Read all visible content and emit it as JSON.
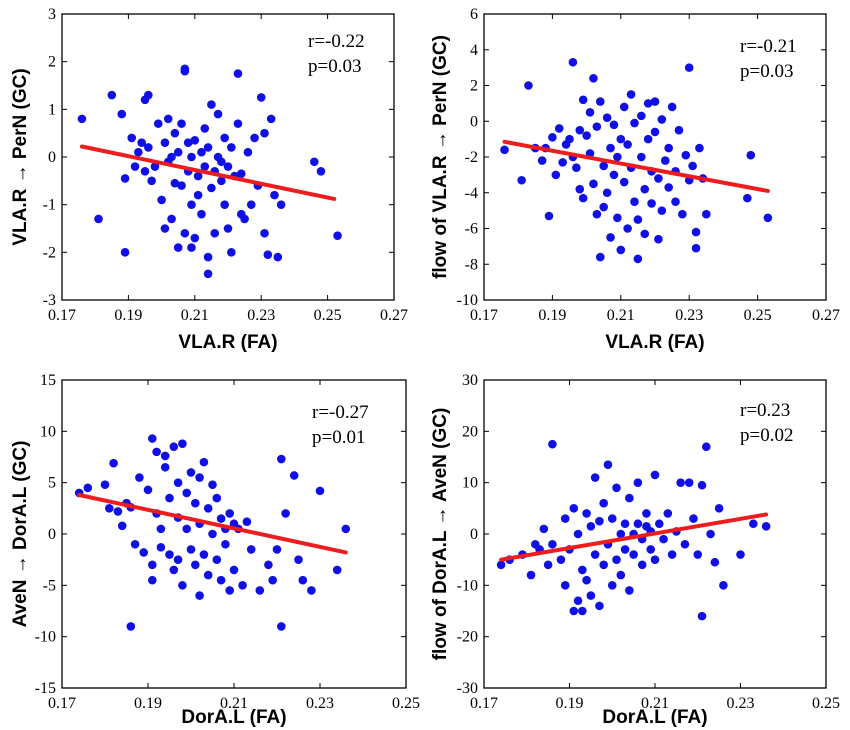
{
  "chart_data": [
    {
      "type": "scatter",
      "xlabel": "VLA.R (FA)",
      "ylabel": "VLA.R → PerN (GC)",
      "xlim": [
        0.17,
        0.27
      ],
      "ylim": [
        -3,
        3
      ],
      "xticks": [
        "0.17",
        "0.19",
        "0.21",
        "0.23",
        "0.25",
        "0.27"
      ],
      "yticks": [
        "-3",
        "-2",
        "-1",
        "0",
        "1",
        "2",
        "3"
      ],
      "stats": {
        "r": "r=-0.22",
        "p": "p=0.03"
      },
      "fit": [
        [
          0.176,
          0.22
        ],
        [
          0.252,
          -0.88
        ]
      ],
      "points": [
        [
          0.176,
          0.8
        ],
        [
          0.181,
          -1.3
        ],
        [
          0.185,
          1.3
        ],
        [
          0.188,
          0.9
        ],
        [
          0.189,
          -2.0
        ],
        [
          0.189,
          -0.45
        ],
        [
          0.191,
          0.4
        ],
        [
          0.192,
          -0.2
        ],
        [
          0.193,
          0.1
        ],
        [
          0.194,
          0.3
        ],
        [
          0.195,
          -0.3
        ],
        [
          0.195,
          1.2
        ],
        [
          0.196,
          1.3
        ],
        [
          0.196,
          0.2
        ],
        [
          0.197,
          -0.5
        ],
        [
          0.198,
          -0.2
        ],
        [
          0.199,
          0.7
        ],
        [
          0.2,
          -0.9
        ],
        [
          0.201,
          0.3
        ],
        [
          0.201,
          -1.5
        ],
        [
          0.202,
          -0.1
        ],
        [
          0.202,
          0.8
        ],
        [
          0.203,
          -1.3
        ],
        [
          0.203,
          0.0
        ],
        [
          0.204,
          0.5
        ],
        [
          0.204,
          -0.55
        ],
        [
          0.205,
          -1.9
        ],
        [
          0.205,
          0.1
        ],
        [
          0.206,
          0.7
        ],
        [
          0.206,
          -0.6
        ],
        [
          0.207,
          1.8
        ],
        [
          0.207,
          1.85
        ],
        [
          0.207,
          -1.6
        ],
        [
          0.208,
          0.3
        ],
        [
          0.208,
          -0.3
        ],
        [
          0.209,
          -1.0
        ],
        [
          0.209,
          0.0
        ],
        [
          0.209,
          -1.9
        ],
        [
          0.21,
          -1.7
        ],
        [
          0.21,
          0.35
        ],
        [
          0.211,
          -0.4
        ],
        [
          0.211,
          -0.8
        ],
        [
          0.212,
          -1.2
        ],
        [
          0.212,
          0.1
        ],
        [
          0.213,
          -0.2
        ],
        [
          0.213,
          0.6
        ],
        [
          0.214,
          -2.1
        ],
        [
          0.214,
          -2.45
        ],
        [
          0.214,
          0.2
        ],
        [
          0.215,
          -0.65
        ],
        [
          0.215,
          1.1
        ],
        [
          0.216,
          -0.3
        ],
        [
          0.216,
          -1.6
        ],
        [
          0.217,
          0.9
        ],
        [
          0.217,
          0.0
        ],
        [
          0.218,
          -0.1
        ],
        [
          0.218,
          -0.5
        ],
        [
          0.219,
          -1.0
        ],
        [
          0.219,
          0.4
        ],
        [
          0.22,
          -0.2
        ],
        [
          0.22,
          -1.5
        ],
        [
          0.221,
          -2.0
        ],
        [
          0.221,
          0.2
        ],
        [
          0.222,
          -0.4
        ],
        [
          0.223,
          0.7
        ],
        [
          0.223,
          1.75
        ],
        [
          0.224,
          -1.2
        ],
        [
          0.224,
          -0.35
        ],
        [
          0.225,
          -1.3
        ],
        [
          0.226,
          0.1
        ],
        [
          0.227,
          -1.0
        ],
        [
          0.228,
          0.4
        ],
        [
          0.229,
          -0.6
        ],
        [
          0.23,
          1.25
        ],
        [
          0.231,
          0.5
        ],
        [
          0.231,
          -1.6
        ],
        [
          0.232,
          -2.05
        ],
        [
          0.233,
          0.8
        ],
        [
          0.234,
          -0.8
        ],
        [
          0.235,
          -2.1
        ],
        [
          0.236,
          -1.0
        ],
        [
          0.246,
          -0.1
        ],
        [
          0.248,
          -0.3
        ],
        [
          0.253,
          -1.65
        ]
      ]
    },
    {
      "type": "scatter",
      "xlabel": "VLA.R (FA)",
      "ylabel": "flow of VLA.R → PerN (GC)",
      "xlim": [
        0.17,
        0.27
      ],
      "ylim": [
        -10,
        6
      ],
      "xticks": [
        "0.17",
        "0.19",
        "0.21",
        "0.23",
        "0.25",
        "0.27"
      ],
      "yticks": [
        "-10",
        "-8",
        "-6",
        "-4",
        "-2",
        "0",
        "2",
        "4",
        "6"
      ],
      "stats": {
        "r": "r=-0.21",
        "p": "p=0.03"
      },
      "fit": [
        [
          0.176,
          -1.15
        ],
        [
          0.253,
          -3.9
        ]
      ],
      "points": [
        [
          0.176,
          -1.6
        ],
        [
          0.181,
          -3.3
        ],
        [
          0.183,
          2.0
        ],
        [
          0.185,
          -1.5
        ],
        [
          0.187,
          -2.2
        ],
        [
          0.188,
          -1.5
        ],
        [
          0.189,
          -5.3
        ],
        [
          0.19,
          -0.9
        ],
        [
          0.191,
          -3.0
        ],
        [
          0.192,
          -0.4
        ],
        [
          0.193,
          -2.3
        ],
        [
          0.194,
          -1.3
        ],
        [
          0.195,
          -1.0
        ],
        [
          0.196,
          3.3
        ],
        [
          0.196,
          -2.0
        ],
        [
          0.197,
          -2.6
        ],
        [
          0.198,
          -0.5
        ],
        [
          0.198,
          -3.8
        ],
        [
          0.199,
          1.2
        ],
        [
          0.199,
          -4.3
        ],
        [
          0.2,
          -0.8
        ],
        [
          0.201,
          0.5
        ],
        [
          0.201,
          -1.8
        ],
        [
          0.202,
          2.4
        ],
        [
          0.202,
          -3.5
        ],
        [
          0.203,
          -0.3
        ],
        [
          0.203,
          -5.2
        ],
        [
          0.204,
          1.1
        ],
        [
          0.204,
          -7.6
        ],
        [
          0.205,
          -4.8
        ],
        [
          0.205,
          -2.5
        ],
        [
          0.206,
          0.2
        ],
        [
          0.206,
          -4.0
        ],
        [
          0.207,
          -1.5
        ],
        [
          0.207,
          -6.5
        ],
        [
          0.208,
          -0.2
        ],
        [
          0.208,
          -3.0
        ],
        [
          0.209,
          -2.0
        ],
        [
          0.209,
          -5.4
        ],
        [
          0.21,
          -7.2
        ],
        [
          0.21,
          -1.0
        ],
        [
          0.211,
          0.8
        ],
        [
          0.211,
          -3.4
        ],
        [
          0.212,
          -1.3
        ],
        [
          0.212,
          -6.0
        ],
        [
          0.213,
          1.5
        ],
        [
          0.213,
          -2.6
        ],
        [
          0.214,
          -4.5
        ],
        [
          0.214,
          -0.1
        ],
        [
          0.215,
          -7.7
        ],
        [
          0.215,
          -5.5
        ],
        [
          0.216,
          0.3
        ],
        [
          0.216,
          -2.0
        ],
        [
          0.217,
          -3.8
        ],
        [
          0.217,
          -6.3
        ],
        [
          0.218,
          1.0
        ],
        [
          0.218,
          -1.0
        ],
        [
          0.219,
          -2.8
        ],
        [
          0.219,
          -4.6
        ],
        [
          0.22,
          1.1
        ],
        [
          0.22,
          -0.6
        ],
        [
          0.221,
          -3.2
        ],
        [
          0.221,
          -6.6
        ],
        [
          0.222,
          0.1
        ],
        [
          0.222,
          -5.0
        ],
        [
          0.223,
          -2.2
        ],
        [
          0.224,
          -1.5
        ],
        [
          0.224,
          -3.7
        ],
        [
          0.225,
          0.8
        ],
        [
          0.226,
          -4.5
        ],
        [
          0.226,
          -2.8
        ],
        [
          0.227,
          -0.5
        ],
        [
          0.228,
          -5.2
        ],
        [
          0.229,
          -1.9
        ],
        [
          0.23,
          3.0
        ],
        [
          0.23,
          -3.3
        ],
        [
          0.231,
          -2.5
        ],
        [
          0.232,
          -7.1
        ],
        [
          0.232,
          -6.2
        ],
        [
          0.233,
          -1.5
        ],
        [
          0.234,
          -3.2
        ],
        [
          0.235,
          -5.2
        ],
        [
          0.247,
          -4.3
        ],
        [
          0.248,
          -1.9
        ],
        [
          0.253,
          -5.4
        ]
      ]
    },
    {
      "type": "scatter",
      "xlabel": "DorA.L (FA)",
      "ylabel": "AveN → DorA.L (GC)",
      "xlim": [
        0.17,
        0.25
      ],
      "ylim": [
        -15,
        15
      ],
      "xticks": [
        "0.17",
        "0.19",
        "0.21",
        "0.23",
        "0.25"
      ],
      "yticks": [
        "-15",
        "-10",
        "-5",
        "0",
        "5",
        "10",
        "15"
      ],
      "stats": {
        "r": "r=-0.27",
        "p": "p=0.01"
      },
      "fit": [
        [
          0.174,
          3.8
        ],
        [
          0.236,
          -1.8
        ]
      ],
      "points": [
        [
          0.174,
          4.0
        ],
        [
          0.176,
          4.5
        ],
        [
          0.18,
          4.8
        ],
        [
          0.181,
          2.5
        ],
        [
          0.182,
          6.9
        ],
        [
          0.183,
          2.2
        ],
        [
          0.184,
          0.8
        ],
        [
          0.185,
          3.0
        ],
        [
          0.186,
          -9.0
        ],
        [
          0.186,
          2.6
        ],
        [
          0.187,
          -1.0
        ],
        [
          0.188,
          5.5
        ],
        [
          0.189,
          -1.8
        ],
        [
          0.19,
          4.3
        ],
        [
          0.191,
          -3.0
        ],
        [
          0.191,
          9.3
        ],
        [
          0.191,
          -4.5
        ],
        [
          0.192,
          2.0
        ],
        [
          0.192,
          8.0
        ],
        [
          0.193,
          0.5
        ],
        [
          0.193,
          -1.3
        ],
        [
          0.194,
          6.5
        ],
        [
          0.194,
          7.6
        ],
        [
          0.195,
          3.5
        ],
        [
          0.195,
          -2.0
        ],
        [
          0.196,
          8.5
        ],
        [
          0.196,
          -3.5
        ],
        [
          0.197,
          1.6
        ],
        [
          0.197,
          5.0
        ],
        [
          0.197,
          -2.5
        ],
        [
          0.198,
          8.8
        ],
        [
          0.198,
          -5.0
        ],
        [
          0.199,
          4.0
        ],
        [
          0.199,
          0.5
        ],
        [
          0.2,
          6.0
        ],
        [
          0.2,
          -1.5
        ],
        [
          0.201,
          3.0
        ],
        [
          0.201,
          -3.0
        ],
        [
          0.202,
          5.5
        ],
        [
          0.202,
          -6.0
        ],
        [
          0.202,
          1.0
        ],
        [
          0.203,
          7.0
        ],
        [
          0.203,
          -2.0
        ],
        [
          0.204,
          2.5
        ],
        [
          0.204,
          -4.0
        ],
        [
          0.205,
          0.0
        ],
        [
          0.205,
          4.8
        ],
        [
          0.206,
          -2.5
        ],
        [
          0.206,
          3.5
        ],
        [
          0.207,
          1.5
        ],
        [
          0.207,
          -4.5
        ],
        [
          0.208,
          -1.0
        ],
        [
          0.208,
          0.5
        ],
        [
          0.209,
          2.0
        ],
        [
          0.209,
          -5.5
        ],
        [
          0.21,
          1.0
        ],
        [
          0.21,
          -3.5
        ],
        [
          0.211,
          0.5
        ],
        [
          0.212,
          -5.0
        ],
        [
          0.213,
          1.2
        ],
        [
          0.214,
          -1.5
        ],
        [
          0.216,
          -5.5
        ],
        [
          0.218,
          -3.0
        ],
        [
          0.219,
          -4.5
        ],
        [
          0.22,
          -1.5
        ],
        [
          0.221,
          7.3
        ],
        [
          0.221,
          -9.0
        ],
        [
          0.222,
          2.0
        ],
        [
          0.224,
          5.7
        ],
        [
          0.225,
          -2.5
        ],
        [
          0.226,
          -4.5
        ],
        [
          0.228,
          -5.5
        ],
        [
          0.23,
          4.2
        ],
        [
          0.234,
          -3.5
        ],
        [
          0.236,
          0.5
        ]
      ]
    },
    {
      "type": "scatter",
      "xlabel": "DorA.L (FA)",
      "ylabel": "flow of DorA.L → AveN (GC)",
      "xlim": [
        0.17,
        0.25
      ],
      "ylim": [
        -30,
        30
      ],
      "xticks": [
        "0.17",
        "0.19",
        "0.21",
        "0.23",
        "0.25"
      ],
      "yticks": [
        "-30",
        "-20",
        "-10",
        "0",
        "10",
        "20",
        "30"
      ],
      "stats": {
        "r": "r=0.23",
        "p": "p=0.02"
      },
      "fit": [
        [
          0.174,
          -5.0
        ],
        [
          0.236,
          3.8
        ]
      ],
      "points": [
        [
          0.174,
          -6.0
        ],
        [
          0.176,
          -5.0
        ],
        [
          0.179,
          -4.0
        ],
        [
          0.181,
          -8.0
        ],
        [
          0.182,
          -2.0
        ],
        [
          0.183,
          -3.0
        ],
        [
          0.184,
          1.0
        ],
        [
          0.185,
          -6.0
        ],
        [
          0.186,
          17.5
        ],
        [
          0.186,
          -2.0
        ],
        [
          0.188,
          -5.0
        ],
        [
          0.189,
          3.0
        ],
        [
          0.189,
          -10.0
        ],
        [
          0.19,
          -3.0
        ],
        [
          0.191,
          -15.0
        ],
        [
          0.191,
          5.0
        ],
        [
          0.192,
          -13.0
        ],
        [
          0.192,
          0.0
        ],
        [
          0.193,
          -7.0
        ],
        [
          0.193,
          -15.0
        ],
        [
          0.194,
          4.0
        ],
        [
          0.194,
          -9.0
        ],
        [
          0.195,
          -12.0
        ],
        [
          0.195,
          1.5
        ],
        [
          0.196,
          -4.0
        ],
        [
          0.196,
          11.0
        ],
        [
          0.197,
          -14.0
        ],
        [
          0.197,
          2.5
        ],
        [
          0.198,
          -6.0
        ],
        [
          0.198,
          6.0
        ],
        [
          0.199,
          -2.0
        ],
        [
          0.199,
          13.5
        ],
        [
          0.2,
          -10.0
        ],
        [
          0.2,
          3.0
        ],
        [
          0.201,
          -5.0
        ],
        [
          0.201,
          9.0
        ],
        [
          0.202,
          0.0
        ],
        [
          0.202,
          -8.0
        ],
        [
          0.203,
          2.0
        ],
        [
          0.203,
          -3.0
        ],
        [
          0.204,
          7.0
        ],
        [
          0.204,
          -11.0
        ],
        [
          0.205,
          0.0
        ],
        [
          0.205,
          -4.0
        ],
        [
          0.206,
          2.0
        ],
        [
          0.206,
          10.0
        ],
        [
          0.207,
          -1.0
        ],
        [
          0.207,
          -6.0
        ],
        [
          0.208,
          1.5
        ],
        [
          0.208,
          4.0
        ],
        [
          0.209,
          -3.0
        ],
        [
          0.209,
          0.5
        ],
        [
          0.21,
          11.5
        ],
        [
          0.21,
          -5.0
        ],
        [
          0.211,
          2.0
        ],
        [
          0.212,
          -1.0
        ],
        [
          0.213,
          4.0
        ],
        [
          0.214,
          -4.0
        ],
        [
          0.215,
          0.5
        ],
        [
          0.216,
          10.0
        ],
        [
          0.217,
          -2.0
        ],
        [
          0.218,
          10.0
        ],
        [
          0.219,
          3.0
        ],
        [
          0.22,
          -4.0
        ],
        [
          0.221,
          9.5
        ],
        [
          0.221,
          -16.0
        ],
        [
          0.222,
          17.0
        ],
        [
          0.223,
          0.0
        ],
        [
          0.224,
          -5.5
        ],
        [
          0.225,
          5.0
        ],
        [
          0.226,
          -10.0
        ],
        [
          0.23,
          -4.0
        ],
        [
          0.233,
          2.0
        ],
        [
          0.236,
          1.5
        ]
      ]
    }
  ]
}
